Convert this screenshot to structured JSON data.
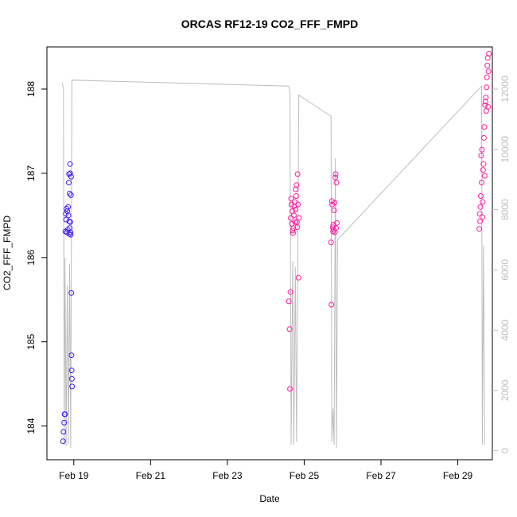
{
  "chart_data": {
    "type": "scatter",
    "title": "ORCAS RF12-19 CO2_FFF_FMPD",
    "xlabel": "Date",
    "ylabel": "CO2_FFF_FMPD",
    "x_ticks": [
      "Feb 19",
      "Feb 21",
      "Feb 23",
      "Feb 25",
      "Feb 27",
      "Feb 29"
    ],
    "x_tick_values": [
      19,
      21,
      23,
      25,
      27,
      29
    ],
    "xlim": [
      18.3,
      29.9
    ],
    "ylim": [
      183.6,
      188.5
    ],
    "y_ticks": [
      184,
      185,
      186,
      187,
      188
    ],
    "y2_ticks": [
      0,
      2000,
      4000,
      6000,
      8000,
      10000,
      12000
    ],
    "y2lim": [
      -300,
      13400
    ],
    "point_color_gradient": [
      "#3a1aff",
      "#ff1aa0"
    ],
    "line_color": "#bdbdbd",
    "series": [
      {
        "type": "points",
        "points": [
          {
            "x": 18.72,
            "y": 183.82
          },
          {
            "x": 18.73,
            "y": 183.93
          },
          {
            "x": 18.75,
            "y": 184.04
          },
          {
            "x": 18.76,
            "y": 184.14
          },
          {
            "x": 18.77,
            "y": 184.14
          },
          {
            "x": 18.78,
            "y": 186.31
          },
          {
            "x": 18.79,
            "y": 186.52
          },
          {
            "x": 18.8,
            "y": 186.45
          },
          {
            "x": 18.81,
            "y": 186.58
          },
          {
            "x": 18.82,
            "y": 186.3
          },
          {
            "x": 18.83,
            "y": 186.55
          },
          {
            "x": 18.84,
            "y": 186.33
          },
          {
            "x": 18.85,
            "y": 186.6
          },
          {
            "x": 18.86,
            "y": 186.5
          },
          {
            "x": 18.87,
            "y": 186.89
          },
          {
            "x": 18.875,
            "y": 186.99
          },
          {
            "x": 18.88,
            "y": 186.43
          },
          {
            "x": 18.885,
            "y": 186.28
          },
          {
            "x": 18.89,
            "y": 186.76
          },
          {
            "x": 18.895,
            "y": 186.35
          },
          {
            "x": 18.9,
            "y": 187.11
          },
          {
            "x": 18.905,
            "y": 187.0
          },
          {
            "x": 18.91,
            "y": 186.42
          },
          {
            "x": 18.915,
            "y": 186.3
          },
          {
            "x": 18.92,
            "y": 186.27
          },
          {
            "x": 18.925,
            "y": 186.74
          },
          {
            "x": 18.93,
            "y": 186.96
          },
          {
            "x": 18.935,
            "y": 185.58
          },
          {
            "x": 18.94,
            "y": 184.84
          },
          {
            "x": 18.945,
            "y": 184.66
          },
          {
            "x": 18.95,
            "y": 184.56
          },
          {
            "x": 18.955,
            "y": 184.47
          },
          {
            "x": 24.6,
            "y": 185.48
          },
          {
            "x": 24.62,
            "y": 185.15
          },
          {
            "x": 24.63,
            "y": 184.44
          },
          {
            "x": 24.64,
            "y": 185.59
          },
          {
            "x": 24.65,
            "y": 186.47
          },
          {
            "x": 24.66,
            "y": 186.7
          },
          {
            "x": 24.67,
            "y": 186.63
          },
          {
            "x": 24.68,
            "y": 186.4
          },
          {
            "x": 24.69,
            "y": 186.55
          },
          {
            "x": 24.7,
            "y": 186.32
          },
          {
            "x": 24.71,
            "y": 186.29
          },
          {
            "x": 24.72,
            "y": 186.35
          },
          {
            "x": 24.73,
            "y": 186.5
          },
          {
            "x": 24.74,
            "y": 186.61
          },
          {
            "x": 24.75,
            "y": 186.66
          },
          {
            "x": 24.76,
            "y": 186.42
          },
          {
            "x": 24.77,
            "y": 186.57
          },
          {
            "x": 24.78,
            "y": 186.81
          },
          {
            "x": 24.79,
            "y": 186.73
          },
          {
            "x": 24.8,
            "y": 186.86
          },
          {
            "x": 24.81,
            "y": 186.42
          },
          {
            "x": 24.82,
            "y": 186.36
          },
          {
            "x": 24.83,
            "y": 186.99
          },
          {
            "x": 24.84,
            "y": 186.63
          },
          {
            "x": 24.85,
            "y": 185.76
          },
          {
            "x": 24.86,
            "y": 186.47
          },
          {
            "x": 25.7,
            "y": 186.18
          },
          {
            "x": 25.71,
            "y": 185.44
          },
          {
            "x": 25.72,
            "y": 186.67
          },
          {
            "x": 25.73,
            "y": 186.63
          },
          {
            "x": 25.74,
            "y": 186.36
          },
          {
            "x": 25.75,
            "y": 186.31
          },
          {
            "x": 25.76,
            "y": 186.39
          },
          {
            "x": 25.77,
            "y": 186.33
          },
          {
            "x": 25.78,
            "y": 186.56
          },
          {
            "x": 25.79,
            "y": 186.65
          },
          {
            "x": 25.8,
            "y": 186.3
          },
          {
            "x": 25.81,
            "y": 186.95
          },
          {
            "x": 25.82,
            "y": 186.99
          },
          {
            "x": 25.83,
            "y": 186.35
          },
          {
            "x": 25.84,
            "y": 186.89
          },
          {
            "x": 25.85,
            "y": 186.41
          },
          {
            "x": 29.56,
            "y": 186.34
          },
          {
            "x": 29.57,
            "y": 186.52
          },
          {
            "x": 29.58,
            "y": 186.43
          },
          {
            "x": 29.59,
            "y": 186.6
          },
          {
            "x": 29.6,
            "y": 186.73
          },
          {
            "x": 29.61,
            "y": 187.21
          },
          {
            "x": 29.62,
            "y": 186.89
          },
          {
            "x": 29.63,
            "y": 187.28
          },
          {
            "x": 29.64,
            "y": 186.48
          },
          {
            "x": 29.65,
            "y": 186.66
          },
          {
            "x": 29.66,
            "y": 187.04
          },
          {
            "x": 29.67,
            "y": 187.11
          },
          {
            "x": 29.68,
            "y": 187.42
          },
          {
            "x": 29.69,
            "y": 187.55
          },
          {
            "x": 29.7,
            "y": 186.97
          },
          {
            "x": 29.71,
            "y": 187.81
          },
          {
            "x": 29.72,
            "y": 187.85
          },
          {
            "x": 29.73,
            "y": 187.9
          },
          {
            "x": 29.74,
            "y": 187.74
          },
          {
            "x": 29.75,
            "y": 188.02
          },
          {
            "x": 29.76,
            "y": 188.14
          },
          {
            "x": 29.77,
            "y": 188.28
          },
          {
            "x": 29.78,
            "y": 188.37
          },
          {
            "x": 29.79,
            "y": 187.79
          },
          {
            "x": 29.8,
            "y": 188.21
          },
          {
            "x": 29.81,
            "y": 188.42
          }
        ]
      },
      {
        "type": "line",
        "axis": "right",
        "points": [
          {
            "x": 18.7,
            "y": 12200
          },
          {
            "x": 18.73,
            "y": 12000
          },
          {
            "x": 18.75,
            "y": 200
          },
          {
            "x": 18.77,
            "y": 6400
          },
          {
            "x": 18.8,
            "y": 150
          },
          {
            "x": 18.83,
            "y": 5500
          },
          {
            "x": 18.86,
            "y": 200
          },
          {
            "x": 18.89,
            "y": 6200
          },
          {
            "x": 18.92,
            "y": 100
          },
          {
            "x": 18.95,
            "y": 12300
          },
          {
            "x": 24.6,
            "y": 12100
          },
          {
            "x": 24.63,
            "y": 11900
          },
          {
            "x": 24.66,
            "y": 200
          },
          {
            "x": 24.7,
            "y": 6300
          },
          {
            "x": 24.73,
            "y": 200
          },
          {
            "x": 24.77,
            "y": 6100
          },
          {
            "x": 24.8,
            "y": 300
          },
          {
            "x": 24.83,
            "y": 5800
          },
          {
            "x": 24.86,
            "y": 11800
          },
          {
            "x": 25.7,
            "y": 11100
          },
          {
            "x": 25.72,
            "y": 300
          },
          {
            "x": 25.75,
            "y": 1400
          },
          {
            "x": 25.78,
            "y": 200
          },
          {
            "x": 25.81,
            "y": 9700
          },
          {
            "x": 25.84,
            "y": 100
          },
          {
            "x": 25.87,
            "y": 7000
          },
          {
            "x": 29.62,
            "y": 12100
          },
          {
            "x": 29.64,
            "y": 200
          },
          {
            "x": 29.67,
            "y": 6800
          },
          {
            "x": 29.7,
            "y": 200
          }
        ]
      }
    ]
  }
}
